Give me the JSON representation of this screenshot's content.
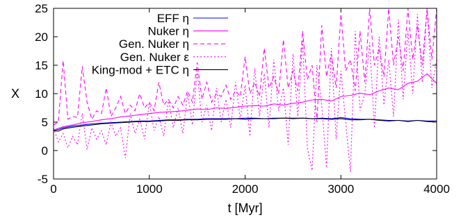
{
  "chart_data": {
    "type": "line",
    "xlabel": "t [Myr]",
    "ylabel": "X",
    "xlim": [
      0,
      4000
    ],
    "ylim": [
      -5,
      25
    ],
    "xticks": [
      0,
      1000,
      2000,
      3000,
      4000
    ],
    "yticks": [
      -5,
      0,
      5,
      10,
      15,
      20,
      25
    ],
    "xtick_labels": [
      "0",
      "1000",
      "2000",
      "3000",
      "4000"
    ],
    "ytick_labels": [
      "-5",
      "0",
      "5",
      "10",
      "15",
      "20",
      "25"
    ],
    "grid": false,
    "legend_position": "top-right",
    "series": [
      {
        "name": "EFF η",
        "color": "#0000ff",
        "dash": "solid",
        "x": [
          0,
          50,
          100,
          200,
          300,
          400,
          500,
          600,
          700,
          800,
          900,
          1000,
          1100,
          1200,
          1300,
          1400,
          1500,
          1600,
          1700,
          1800,
          1900,
          2000,
          2100,
          2200,
          2300,
          2400,
          2500,
          2600,
          2700,
          2800,
          2900,
          3000,
          3100,
          3200,
          3300,
          3400,
          3500,
          3600,
          3700,
          3800,
          3900,
          4000
        ],
        "y": [
          3.6,
          3.7,
          4.0,
          4.3,
          4.5,
          4.7,
          4.8,
          4.9,
          5.0,
          5.1,
          5.2,
          5.2,
          5.3,
          5.4,
          5.4,
          5.5,
          5.5,
          5.6,
          5.6,
          5.6,
          5.6,
          5.7,
          5.7,
          5.6,
          5.7,
          5.7,
          5.7,
          5.7,
          5.6,
          5.7,
          5.6,
          5.8,
          5.6,
          5.5,
          5.5,
          5.4,
          5.3,
          5.3,
          5.2,
          5.3,
          5.2,
          5.2
        ]
      },
      {
        "name": "Nuker η",
        "color": "#ff00ff",
        "dash": "solid",
        "x": [
          0,
          50,
          100,
          200,
          300,
          400,
          500,
          600,
          700,
          800,
          900,
          1000,
          1100,
          1200,
          1300,
          1400,
          1500,
          1600,
          1700,
          1800,
          1900,
          2000,
          2100,
          2200,
          2300,
          2400,
          2500,
          2600,
          2700,
          2800,
          2900,
          3000,
          3100,
          3200,
          3300,
          3400,
          3500,
          3600,
          3700,
          3800,
          3900,
          4000
        ],
        "y": [
          3.6,
          3.9,
          4.2,
          4.5,
          4.9,
          5.1,
          5.4,
          5.6,
          5.9,
          6.1,
          6.3,
          6.5,
          6.7,
          6.8,
          6.9,
          7.1,
          7.3,
          7.2,
          7.5,
          7.4,
          7.6,
          7.8,
          7.9,
          7.8,
          8.2,
          8.0,
          8.3,
          8.5,
          8.9,
          9.0,
          8.7,
          9.5,
          9.7,
          10.1,
          9.8,
          10.5,
          11.0,
          10.7,
          11.8,
          12.2,
          13.5,
          11.8
        ]
      },
      {
        "name": "Gen. Nuker η",
        "color": "#ff00ff",
        "dash": "6,4",
        "x": [
          0,
          50,
          100,
          150,
          200,
          250,
          300,
          350,
          400,
          450,
          500,
          550,
          600,
          650,
          700,
          750,
          800,
          850,
          900,
          950,
          1000,
          1050,
          1100,
          1150,
          1200,
          1250,
          1300,
          1350,
          1400,
          1450,
          1500,
          1550,
          1600,
          1650,
          1700,
          1750,
          1800,
          1850,
          1900,
          1950,
          2000,
          2050,
          2100,
          2150,
          2200,
          2250,
          2300,
          2350,
          2400,
          2450,
          2500,
          2550,
          2600,
          2650,
          2700,
          2750,
          2800,
          2850,
          2900,
          2950,
          3000,
          3050,
          3100,
          3150,
          3200,
          3250,
          3300,
          3350,
          3400,
          3450,
          3500,
          3550,
          3600,
          3650,
          3700,
          3750,
          3800,
          3850,
          3900,
          3950,
          4000
        ],
        "y": [
          4.5,
          5.0,
          15.8,
          5.5,
          6.0,
          5.8,
          14.8,
          8.5,
          5.5,
          7.0,
          6.5,
          11.0,
          6.0,
          7.5,
          9.5,
          6.5,
          8.0,
          7.0,
          10.0,
          7.5,
          8.5,
          7.0,
          12.0,
          8.0,
          9.0,
          7.5,
          9.5,
          8.0,
          10.5,
          8.5,
          15.5,
          9.0,
          12.0,
          8.5,
          10.0,
          9.5,
          11.5,
          9.0,
          10.5,
          9.5,
          16.5,
          10.0,
          12.0,
          9.5,
          18.0,
          11.0,
          13.0,
          10.0,
          19.5,
          11.0,
          14.0,
          10.5,
          21.0,
          12.5,
          15.0,
          5.0,
          22.0,
          13.0,
          17.0,
          11.0,
          24.0,
          14.0,
          16.0,
          10.5,
          21.0,
          12.0,
          25.0,
          15.0,
          18.0,
          13.0,
          25.0,
          15.0,
          20.0,
          14.0,
          25.0,
          16.0,
          22.0,
          15.0,
          25.0,
          16.0,
          25.0
        ]
      },
      {
        "name": "Gen. Nuker ε",
        "color": "#ff00ff",
        "dash": "2,3",
        "x": [
          0,
          50,
          100,
          150,
          200,
          250,
          300,
          350,
          400,
          450,
          500,
          550,
          600,
          650,
          700,
          750,
          800,
          850,
          900,
          950,
          1000,
          1050,
          1100,
          1150,
          1200,
          1250,
          1300,
          1350,
          1400,
          1450,
          1500,
          1550,
          1600,
          1650,
          1700,
          1750,
          1800,
          1850,
          1900,
          1950,
          2000,
          2050,
          2100,
          2150,
          2200,
          2250,
          2300,
          2350,
          2400,
          2450,
          2500,
          2550,
          2600,
          2650,
          2700,
          2750,
          2800,
          2850,
          2900,
          2950,
          3000,
          3050,
          3100,
          3150,
          3200,
          3250,
          3300,
          3350,
          3400,
          3450,
          3500,
          3550,
          3600,
          3650,
          3700,
          3750,
          3800,
          3850,
          3900,
          3950,
          4000
        ],
        "y": [
          4.0,
          1.5,
          3.0,
          0.5,
          2.5,
          1.0,
          6.5,
          0.2,
          4.0,
          2.0,
          3.5,
          1.0,
          5.0,
          2.5,
          4.0,
          -1.3,
          6.5,
          3.0,
          5.5,
          2.0,
          8.5,
          3.5,
          6.0,
          2.5,
          9.0,
          4.0,
          7.5,
          3.0,
          10.0,
          4.5,
          14.0,
          5.0,
          8.0,
          3.5,
          11.0,
          5.0,
          9.0,
          4.0,
          12.0,
          5.5,
          11.5,
          2.5,
          14.5,
          6.0,
          13.5,
          4.0,
          16.0,
          7.0,
          11.0,
          1.0,
          17.0,
          6.0,
          19.5,
          0.5,
          -3.5,
          15.0,
          8.0,
          -3.0,
          18.0,
          2.0,
          14.0,
          5.0,
          -3.8,
          21.0,
          7.0,
          10.0,
          19.0,
          4.0,
          20.0,
          8.0,
          16.0,
          6.0,
          23.0,
          9.0,
          21.0,
          10.0,
          24.0,
          12.0,
          25.0,
          11.0,
          16.0
        ]
      },
      {
        "name": "King-mod + ETC η",
        "color": "#000000",
        "dash": "solid",
        "x": [
          0,
          50,
          100,
          200,
          300,
          400,
          500,
          600,
          700,
          800,
          900,
          1000,
          1100,
          1200,
          1300,
          1400,
          1500,
          1600,
          1700,
          1800,
          1900,
          2000,
          2100,
          2200,
          2300,
          2400,
          2500,
          2600,
          2700,
          2800,
          2900,
          3000,
          3100,
          3200,
          3300,
          3400,
          3500,
          3600,
          3700,
          3800,
          3900,
          4000
        ],
        "y": [
          3.5,
          3.4,
          3.8,
          4.1,
          4.3,
          4.5,
          4.7,
          4.8,
          4.9,
          5.0,
          5.1,
          5.1,
          5.2,
          5.3,
          5.3,
          5.4,
          5.4,
          5.5,
          5.5,
          5.5,
          5.6,
          5.5,
          5.6,
          5.6,
          5.6,
          5.7,
          5.6,
          5.7,
          5.6,
          5.6,
          5.5,
          5.6,
          5.4,
          5.4,
          5.5,
          5.3,
          5.2,
          5.3,
          5.1,
          5.3,
          5.1,
          5.0
        ]
      }
    ]
  }
}
